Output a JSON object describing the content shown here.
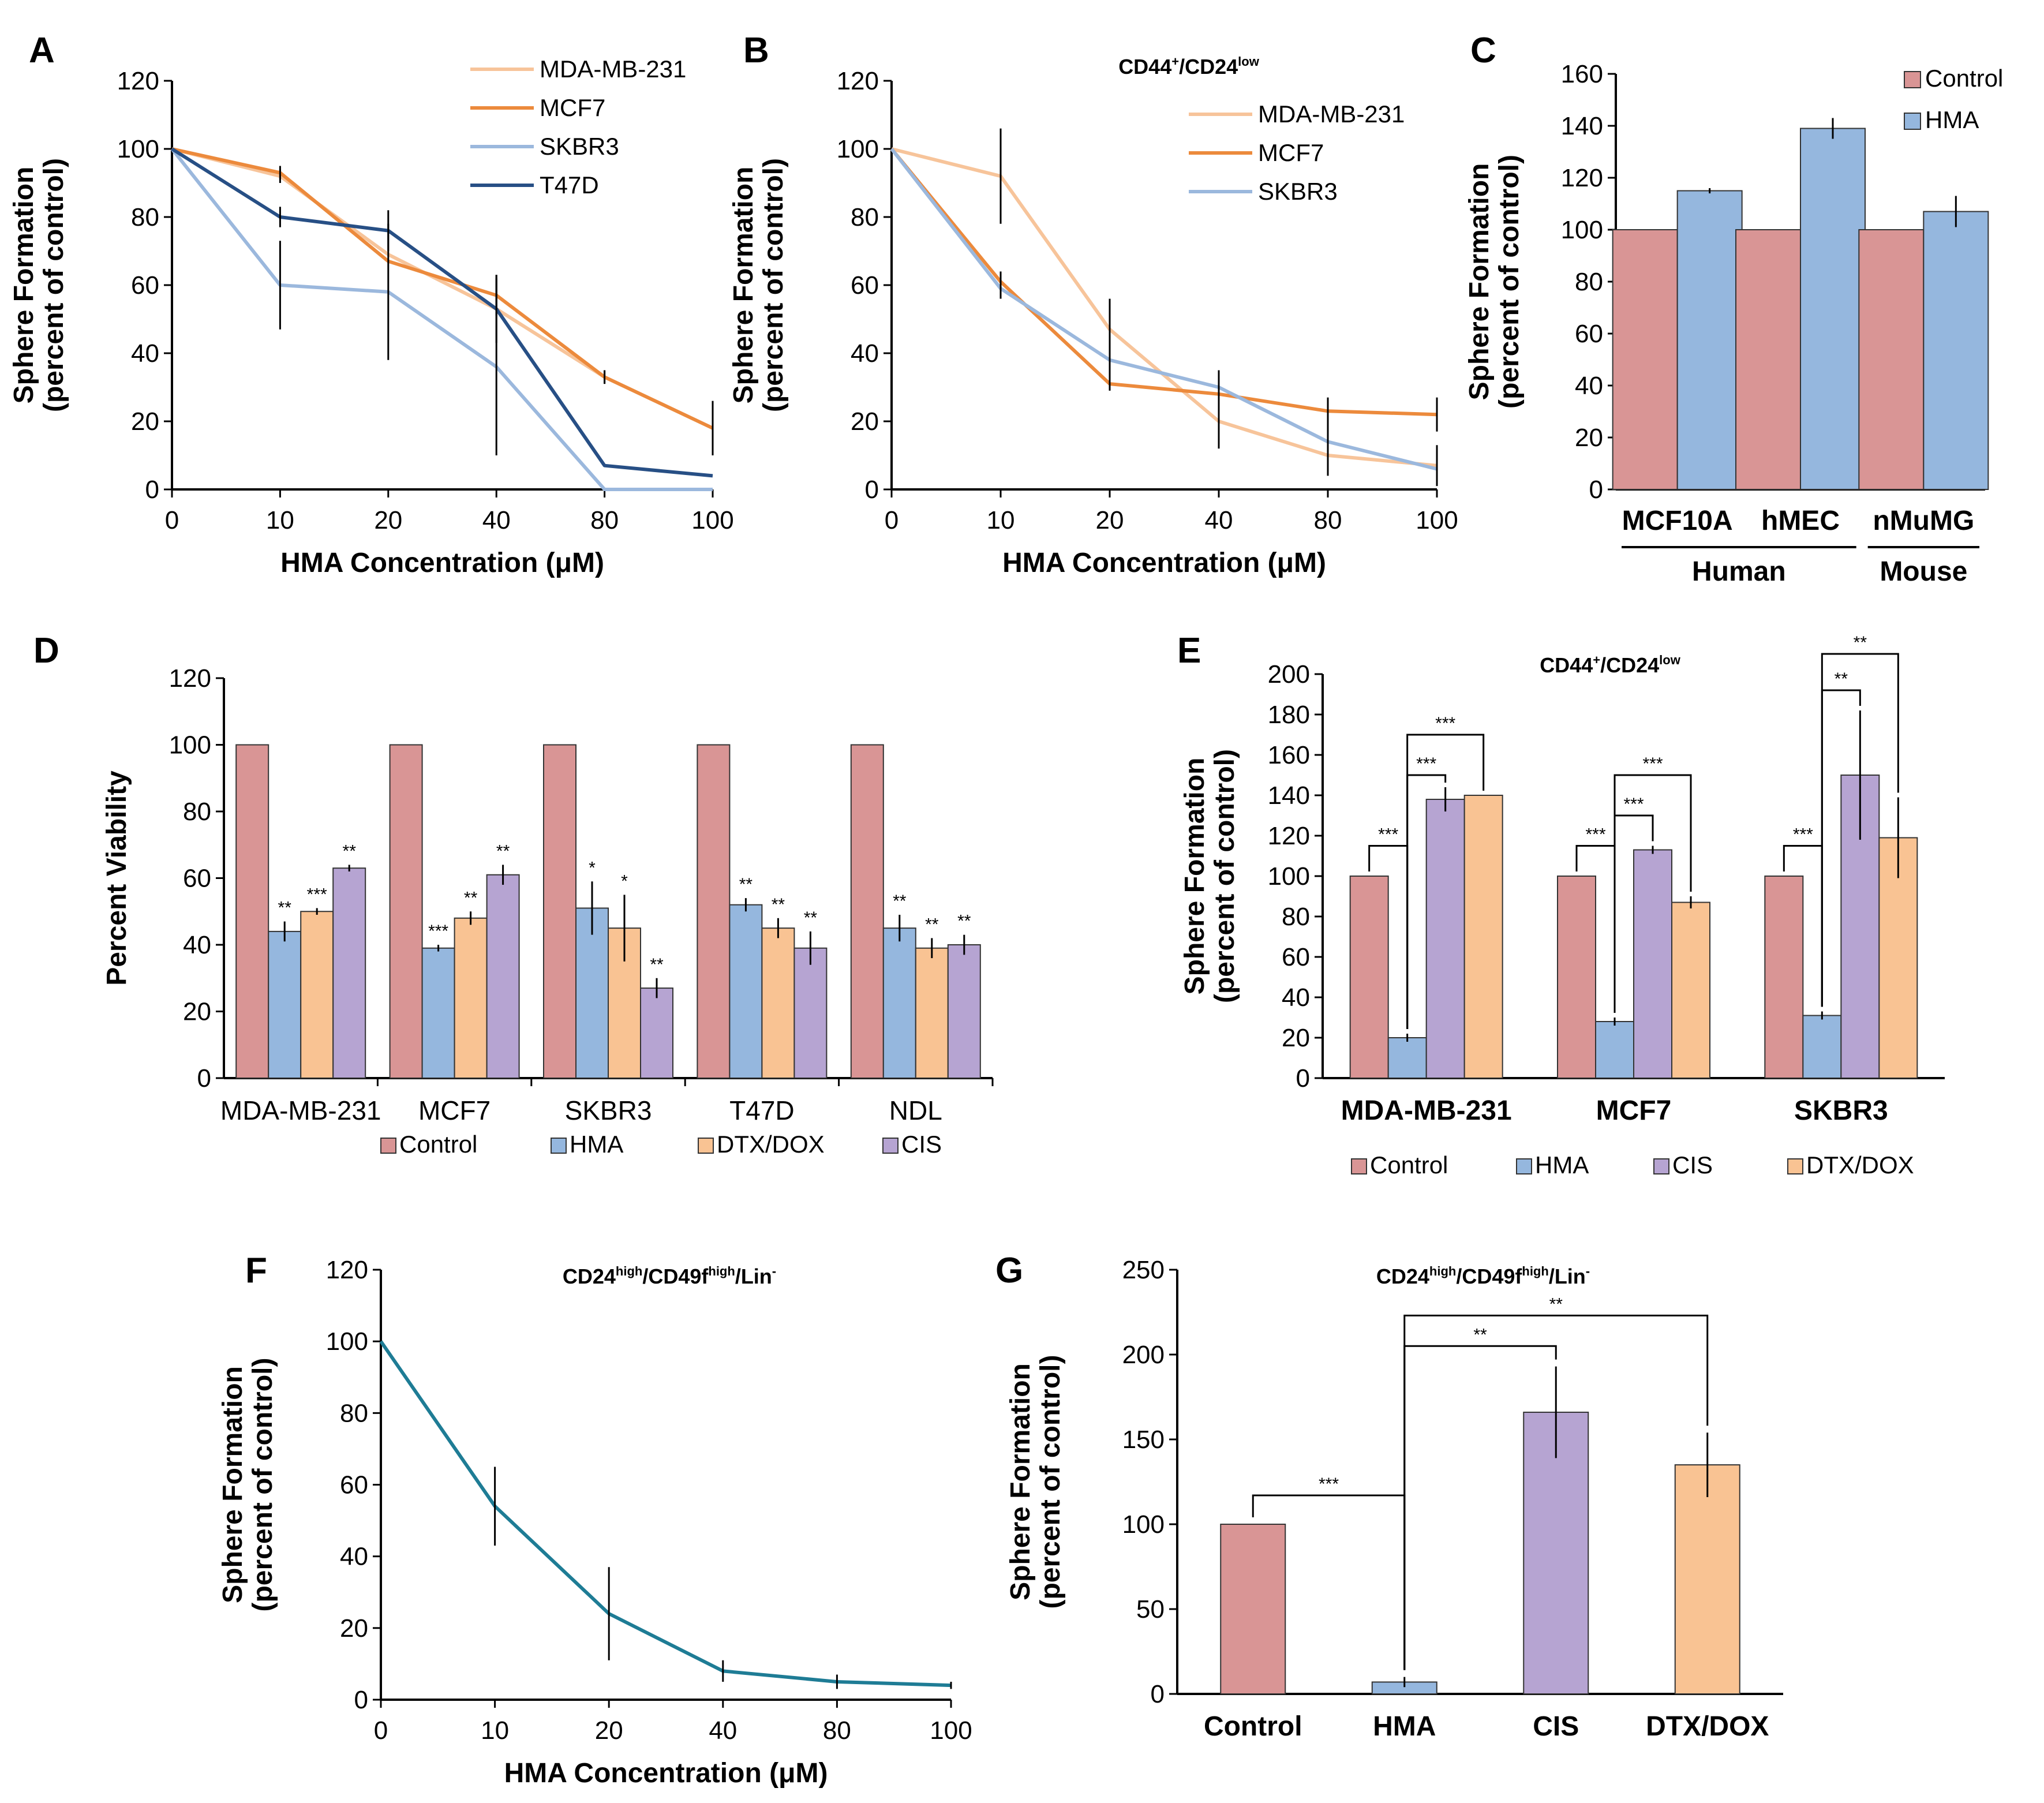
{
  "chart_data": [
    {
      "id": "A",
      "type": "line",
      "letter": "A",
      "title": "",
      "xlabel": "HMA  Concentration (μM)",
      "ylabel": [
        "Sphere Formation",
        "(percent of control)"
      ],
      "categories": [
        "0",
        "10",
        "20",
        "40",
        "80",
        "100"
      ],
      "ylim": [
        0,
        120
      ],
      "yticks": [
        0,
        20,
        40,
        60,
        80,
        100,
        120
      ],
      "legend_position": "top-right",
      "series": [
        {
          "name": "MDA-MB-231",
          "color": "#f7c49a",
          "values": [
            100,
            92,
            69,
            53,
            33,
            18
          ],
          "errors": [
            0,
            2,
            0,
            0,
            2,
            8
          ]
        },
        {
          "name": "MCF7",
          "color": "#ec8a3c",
          "values": [
            100,
            93,
            67,
            57,
            33,
            18
          ],
          "errors": [
            0,
            2,
            0,
            6,
            2,
            7
          ]
        },
        {
          "name": "SKBR3",
          "color": "#9bb8dd",
          "values": [
            100,
            60,
            58,
            36,
            0,
            0
          ],
          "errors": [
            0,
            13,
            20,
            26,
            0,
            0
          ]
        },
        {
          "name": "T47D",
          "color": "#274f85",
          "values": [
            100,
            80,
            76,
            53,
            7,
            4
          ],
          "errors": [
            0,
            3,
            6,
            10,
            0,
            0
          ]
        }
      ]
    },
    {
      "id": "B",
      "type": "line",
      "letter": "B",
      "title_main": "CD44",
      "title_sup1": "+",
      "title_mid": "/CD24",
      "title_sup2": "low",
      "xlabel": "HMA  Concentration (μM)",
      "ylabel": [
        "Sphere Formation",
        "(percent of control)"
      ],
      "categories": [
        "0",
        "10",
        "20",
        "40",
        "80",
        "100"
      ],
      "ylim": [
        0,
        120
      ],
      "yticks": [
        0,
        20,
        40,
        60,
        80,
        100,
        120
      ],
      "legend_position": "top-right",
      "series": [
        {
          "name": "MDA-MB-231",
          "color": "#f7c49a",
          "values": [
            100,
            92,
            47,
            20,
            10,
            7
          ],
          "errors": [
            0,
            14,
            9,
            8,
            6,
            6
          ]
        },
        {
          "name": "MCF7",
          "color": "#ec8a3c",
          "values": [
            100,
            61,
            31,
            28,
            23,
            22
          ],
          "errors": [
            0,
            3,
            2,
            4,
            4,
            5
          ]
        },
        {
          "name": "SKBR3",
          "color": "#9bb8dd",
          "values": [
            100,
            59,
            38,
            30,
            14,
            6
          ],
          "errors": [
            0,
            3,
            6,
            5,
            6,
            3
          ]
        }
      ]
    },
    {
      "id": "C",
      "type": "bar",
      "letter": "C",
      "ylabel": [
        "Sphere Formation",
        "(percent of control)"
      ],
      "categories": [
        "MCF10A",
        "hMEC",
        "nMuMG"
      ],
      "groups": [
        {
          "label": "Human",
          "span": [
            0,
            1
          ]
        },
        {
          "label": "Mouse",
          "span": [
            2,
            2
          ]
        }
      ],
      "ylim": [
        0,
        160
      ],
      "yticks": [
        0,
        20,
        40,
        60,
        80,
        100,
        120,
        140,
        160
      ],
      "legend_position": "top-right",
      "series": [
        {
          "name": "Control",
          "color": "#d99595",
          "values": [
            100,
            100,
            100
          ],
          "errors": [
            0,
            0,
            0
          ]
        },
        {
          "name": "HMA",
          "color": "#95b7de",
          "values": [
            115,
            139,
            107
          ],
          "errors": [
            1,
            4,
            6
          ]
        }
      ]
    },
    {
      "id": "D",
      "type": "bar",
      "letter": "D",
      "ylabel": [
        "Percent Viability"
      ],
      "categories": [
        "MDA-MB-231",
        "MCF7",
        "SKBR3",
        "T47D",
        "NDL"
      ],
      "ylim": [
        0,
        120
      ],
      "yticks": [
        0,
        20,
        40,
        60,
        80,
        100,
        120
      ],
      "legend_position": "bottom",
      "series": [
        {
          "name": "Control",
          "color": "#d99595",
          "values": [
            100,
            100,
            100,
            100,
            100
          ],
          "errors": [
            0,
            0,
            0,
            0,
            0
          ],
          "stars": [
            "",
            "",
            "",
            "",
            ""
          ]
        },
        {
          "name": "HMA",
          "color": "#95b7de",
          "values": [
            44,
            39,
            51,
            52,
            45
          ],
          "errors": [
            3,
            1,
            8,
            2,
            4
          ],
          "stars": [
            "**",
            "***",
            "*",
            "**",
            "**"
          ]
        },
        {
          "name": "DTX/DOX",
          "color": "#f9c393",
          "values": [
            50,
            48,
            45,
            45,
            39
          ],
          "errors": [
            1,
            2,
            10,
            3,
            3
          ],
          "stars": [
            "***",
            "**",
            "*",
            "**",
            "**"
          ]
        },
        {
          "name": "CIS",
          "color": "#b6a4d2",
          "values": [
            63,
            61,
            27,
            39,
            40
          ],
          "errors": [
            1,
            3,
            3,
            5,
            3
          ],
          "stars": [
            "**",
            "**",
            "**",
            "**",
            "**"
          ]
        }
      ]
    },
    {
      "id": "E",
      "type": "bar",
      "letter": "E",
      "title_main": "CD44",
      "title_sup1": "+",
      "title_mid": "/CD24",
      "title_sup2": "low",
      "ylabel": [
        "Sphere Formation",
        "(percent of control)"
      ],
      "categories": [
        "MDA-MB-231",
        "MCF7",
        "SKBR3"
      ],
      "ylim": [
        0,
        200
      ],
      "yticks": [
        0,
        20,
        40,
        60,
        80,
        100,
        120,
        140,
        160,
        180,
        200
      ],
      "legend_position": "bottom",
      "series": [
        {
          "name": "Control",
          "color": "#d99595",
          "values": [
            100,
            100,
            100
          ],
          "errors": [
            0,
            0,
            0
          ]
        },
        {
          "name": "HMA",
          "color": "#95b7de",
          "values": [
            20,
            28,
            31
          ],
          "errors": [
            2,
            2,
            2
          ]
        },
        {
          "name": "CIS",
          "color": "#b6a4d2",
          "values": [
            138,
            113,
            150
          ],
          "errors": [
            6,
            2,
            32
          ]
        },
        {
          "name": "DTX/DOX",
          "color": "#f9c393",
          "values": [
            140,
            87,
            119
          ],
          "errors": [
            0,
            3,
            20
          ]
        }
      ],
      "brackets": [
        {
          "group": 0,
          "from": 0,
          "to": 1,
          "level": 115,
          "label": "***"
        },
        {
          "group": 0,
          "from": 1,
          "to": 2,
          "level": 150,
          "label": "***"
        },
        {
          "group": 0,
          "from": 1,
          "to": 3,
          "level": 170,
          "label": "***"
        },
        {
          "group": 1,
          "from": 0,
          "to": 1,
          "level": 115,
          "label": "***"
        },
        {
          "group": 1,
          "from": 1,
          "to": 2,
          "level": 130,
          "label": "***"
        },
        {
          "group": 1,
          "from": 1,
          "to": 3,
          "level": 150,
          "label": "***"
        },
        {
          "group": 2,
          "from": 0,
          "to": 1,
          "level": 115,
          "label": "***"
        },
        {
          "group": 2,
          "from": 1,
          "to": 2,
          "level": 192,
          "label": "**"
        },
        {
          "group": 2,
          "from": 1,
          "to": 3,
          "level": 210,
          "label": "**"
        }
      ]
    },
    {
      "id": "F",
      "type": "line",
      "letter": "F",
      "title_main": "CD24",
      "title_sup1": "high",
      "title_mid": "/CD49f",
      "title_sup2": "high",
      "title_end": "/Lin",
      "title_sup3": "-",
      "xlabel": "HMA  Concentration (μM)",
      "ylabel": [
        "Sphere Formation",
        "(percent of control)"
      ],
      "categories": [
        "0",
        "10",
        "20",
        "40",
        "80",
        "100"
      ],
      "ylim": [
        0,
        120
      ],
      "yticks": [
        0,
        20,
        40,
        60,
        80,
        100,
        120
      ],
      "series": [
        {
          "name": "",
          "color": "#1e7c95",
          "values": [
            100,
            54,
            24,
            8,
            5,
            4
          ],
          "errors": [
            0,
            11,
            13,
            3,
            2,
            1
          ]
        }
      ]
    },
    {
      "id": "G",
      "type": "bar",
      "letter": "G",
      "title_main": "CD24",
      "title_sup1": "high",
      "title_mid": "/CD49f",
      "title_sup2": "high",
      "title_end": "/Lin",
      "title_sup3": "-",
      "ylabel": [
        "Sphere Formation",
        "(percent of control)"
      ],
      "categories": [
        "Control",
        "HMA",
        "CIS",
        "DTX/DOX"
      ],
      "colors": [
        "#d99595",
        "#95b7de",
        "#b6a4d2",
        "#f9c393"
      ],
      "values": [
        100,
        7,
        166,
        135
      ],
      "errors": [
        0,
        3,
        27,
        19
      ],
      "ylim": [
        0,
        250
      ],
      "yticks": [
        0,
        50,
        100,
        150,
        200,
        250
      ],
      "brackets": [
        {
          "from": 0,
          "to": 1,
          "level": 117,
          "label": "***"
        },
        {
          "from": 1,
          "to": 2,
          "level": 205,
          "label": "**"
        },
        {
          "from": 1,
          "to": 3,
          "level": 223,
          "label": "**"
        }
      ]
    }
  ]
}
